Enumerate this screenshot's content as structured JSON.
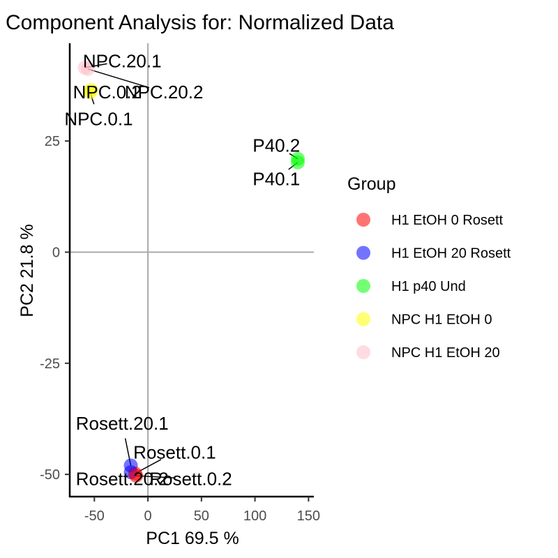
{
  "chart_data": {
    "type": "scatter",
    "title": "Component Analysis for:  Normalized Data",
    "xlabel": "PC1 69.5 %",
    "ylabel": "PC2 21.8 %",
    "xlim": [
      -73,
      155
    ],
    "ylim": [
      -55,
      47
    ],
    "x_ticks": [
      -50,
      0,
      50,
      100,
      150
    ],
    "y_ticks": [
      -50,
      -25,
      0,
      25
    ],
    "reference_lines": {
      "x": 0,
      "y": 0
    },
    "grid": false,
    "legend_title": "Group",
    "legend_position": "right",
    "groups": [
      {
        "name": "H1 EtOH 0 Rosett",
        "color": "#ff0000"
      },
      {
        "name": "H1 EtOH 20 Rosett",
        "color": "#0000ff"
      },
      {
        "name": "H1 p40 Und",
        "color": "#00ff00"
      },
      {
        "name": "NPC H1 EtOH 0",
        "color": "#ffff00"
      },
      {
        "name": "NPC H1 EtOH 20",
        "color": "#ffc0cb"
      }
    ],
    "points": [
      {
        "label": "NPC.20.1",
        "group": "NPC H1 EtOH 20",
        "x": -59,
        "y": 41.5,
        "label_x": -24,
        "label_y": 43
      },
      {
        "label": "NPC.20.2",
        "group": "NPC H1 EtOH 20",
        "x": -56,
        "y": 41.2,
        "label_x": 15,
        "label_y": 36
      },
      {
        "label": "NPC.0.2",
        "group": "NPC H1 EtOH 0",
        "x": -53,
        "y": 36.5,
        "label_x": -38,
        "label_y": 36
      },
      {
        "label": "NPC.0.1",
        "group": "NPC H1 EtOH 0",
        "x": -54,
        "y": 36,
        "label_x": -46,
        "label_y": 30
      },
      {
        "label": "P40.2",
        "group": "H1 p40 Und",
        "x": 140,
        "y": 21,
        "label_x": 120,
        "label_y": 24
      },
      {
        "label": "P40.1",
        "group": "H1 p40 Und",
        "x": 140,
        "y": 20.2,
        "label_x": 120,
        "label_y": 16.5
      },
      {
        "label": "Rosett.20.1",
        "group": "H1 EtOH 20 Rosett",
        "x": -16,
        "y": -48,
        "label_x": -24,
        "label_y": -38.5
      },
      {
        "label": "Rosett.0.1",
        "group": "H1 EtOH 0 Rosett",
        "x": -12,
        "y": -49.8,
        "label_x": 25,
        "label_y": -45
      },
      {
        "label": "Rosett.20.2",
        "group": "H1 EtOH 20 Rosett",
        "x": -16,
        "y": -49.5,
        "label_x": -24,
        "label_y": -51
      },
      {
        "label": "Rosett.0.2",
        "group": "H1 EtOH 0 Rosett",
        "x": -11,
        "y": -50.3,
        "label_x": 40,
        "label_y": -51
      }
    ]
  }
}
